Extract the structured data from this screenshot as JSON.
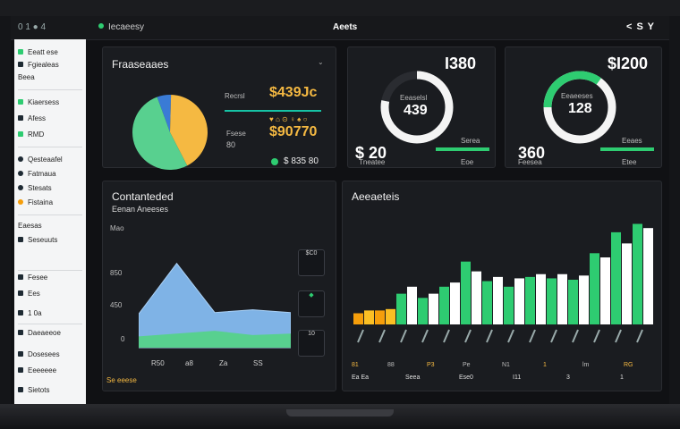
{
  "topbar": {
    "left_label": "0 1 ● 4",
    "breadcrumb": "Iecaeesy",
    "center_title": "Aeets",
    "right_label": "< S Y"
  },
  "sidebar": {
    "items": [
      {
        "label": "Eeatt ese",
        "icon": "dashboard-icon"
      },
      {
        "label": "Fgiealeas",
        "icon": "list-icon"
      },
      {
        "label": "Beea",
        "icon": "none"
      },
      {
        "label": "Kiaersess",
        "icon": "chart-icon"
      },
      {
        "label": "Afess",
        "icon": "bar-icon"
      },
      {
        "label": "RMD",
        "icon": "grid-icon"
      },
      {
        "label": "Qesteaafel",
        "icon": "user-icon"
      },
      {
        "label": "Fatmaua",
        "icon": "target-icon"
      },
      {
        "label": "Stesats",
        "icon": "star-icon"
      },
      {
        "label": "Fistaina",
        "icon": "flag-icon"
      },
      {
        "label": "Eaesas",
        "icon": "none"
      },
      {
        "label": "Seseuuts",
        "icon": "settings-icon"
      },
      {
        "label": "Fesee",
        "icon": "folder-icon"
      },
      {
        "label": "Ees",
        "icon": "file-icon"
      },
      {
        "label": "1 0a",
        "icon": "doc-icon"
      },
      {
        "label": "Daeaeeoe",
        "icon": "clock-icon"
      },
      {
        "label": "Dosesees",
        "icon": "mail-icon"
      },
      {
        "label": "Eeeeeee",
        "icon": "help-icon"
      },
      {
        "label": "Sietots",
        "icon": "logout-icon"
      }
    ]
  },
  "card1": {
    "title": "Fraaseaaes",
    "menu": "⌄",
    "label_a": "Recrsl",
    "value_a": "$439Jc",
    "sub_a": "♥ ⌂ ⊙ ♀ ♠ ○",
    "label_b": "Fsese",
    "label_c": "80",
    "value_b": "$90770",
    "value_c": "$ 835 80",
    "pie": [
      {
        "name": "blue",
        "value": 6,
        "color": "#3a7bd5"
      },
      {
        "name": "yellow",
        "value": 42,
        "color": "#f5b942"
      },
      {
        "name": "green",
        "value": 52,
        "color": "#58d08f"
      }
    ]
  },
  "card2": {
    "big": "I380",
    "center": "439",
    "center_label": "Eeaselsl",
    "bottom_big": "$ 20",
    "bottom_small": "Tneatee",
    "mini_a": "Serea",
    "mini_b": "Eoe",
    "progress": 0.78
  },
  "card3": {
    "big": "$I200",
    "center": "128",
    "center_label": "Eeaeeses",
    "bottom_big": "360",
    "bottom_small": "Feesea",
    "mini_a": "Eeaes",
    "mini_b": "Etee",
    "progress": 0.35
  },
  "card4": {
    "title": "Contanteded",
    "subtitle": "Eenan Aneeses",
    "tick_top": "Mao",
    "tick_a": "850",
    "tick_b": "450",
    "tick_c": "0",
    "xlabels": [
      "R50",
      "a8",
      "Za",
      "SS"
    ],
    "legend": [
      "$C0",
      "◆",
      "10"
    ],
    "footer": "Se eeese"
  },
  "card5": {
    "title": "Aeeaeteis",
    "footer_labels": [
      "81",
      "88",
      "P3",
      "Pe",
      "N1",
      "1",
      "lm",
      "RG"
    ],
    "bottom_legend": [
      "Ea Ea",
      "Seea",
      "Ese0",
      "I11",
      "3",
      "1"
    ]
  },
  "chart_data": [
    {
      "type": "area",
      "title": "Contanteded",
      "series": [
        {
          "name": "",
          "values": [
            24,
            60,
            25,
            27,
            25
          ]
        },
        {
          "name": "",
          "values": [
            8,
            10,
            12,
            9,
            10
          ]
        }
      ]
    },
    {
      "type": "bar",
      "title": "Aeeaeteis",
      "series": [
        {
          "name": "",
          "values": [
            8,
            10,
            22,
            19,
            27,
            45,
            31,
            27,
            34,
            33,
            32,
            51,
            66,
            72
          ]
        },
        {
          "name": "",
          "values": [
            10,
            11,
            27,
            22,
            30,
            38,
            34,
            33,
            36,
            36,
            35,
            48,
            58,
            69
          ]
        }
      ],
      "colors": [
        "#2ecc71",
        "#ffffff",
        "#f59e0b"
      ]
    }
  ]
}
